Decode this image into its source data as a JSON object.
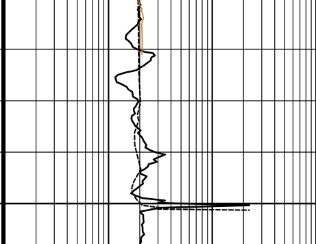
{
  "chart_data": {
    "type": "line",
    "title": "",
    "xlabel": "",
    "ylabel": "",
    "x_scale": "log",
    "xlim": [
      1,
      1000
    ],
    "y_orientation": "depth-increasing-downward",
    "grid": true,
    "legend": "none",
    "colors": {
      "grid": "#000000",
      "series_main": "#000000",
      "series_dashed": "#000000",
      "series_overlay": "#d4781e"
    },
    "series": [
      {
        "style": "solid",
        "x": [
          19.2,
          19.5,
          19.8,
          20.4,
          19.9,
          19.1,
          19.7,
          19.6,
          19.8,
          20.6,
          19.4,
          19.2,
          16.5,
          14.8,
          14.6,
          15.7,
          16.5,
          17.2,
          19.1,
          22.5,
          26.8,
          27.9,
          25.9,
          25.5,
          23.7,
          22.1,
          20.2,
          18.7,
          16.7,
          14.6,
          12.3,
          11.6,
          11.8,
          12.0,
          13.6,
          15.0,
          15.5,
          16.9,
          17.1,
          17.2,
          18.9,
          19.5,
          18.8,
          18.3,
          17.5,
          17.6,
          18.0,
          16.8,
          16.6,
          16.9,
          17.5,
          18.0,
          19.1,
          20.4,
          19.2,
          20.1,
          21.1,
          21.6,
          22.3,
          23.2,
          22.6,
          24.7,
          28.3,
          35.1,
          30.6,
          27.2,
          29.2,
          24.4,
          23.9,
          22.3,
          20.1,
          20.6,
          23.3,
          22.3,
          21.2,
          21.5,
          20.8,
          20.0,
          18.8,
          17.4,
          16.5,
          18.3,
          21.3,
          35.0,
          30.0,
          228,
          31.0,
          24.0,
          20.3,
          20.4,
          21.6,
          21.6,
          21.7,
          21.8,
          21.0,
          21.3,
          21.3,
          21.4,
          22.1,
          20.9,
          20.5,
          20.6,
          20.1
        ],
        "y": [
          0,
          2,
          5,
          8,
          12,
          16,
          20,
          24,
          28,
          32,
          36,
          40,
          50,
          58,
          64,
          68,
          72,
          78,
          82,
          86,
          88,
          92,
          95,
          100,
          104,
          108,
          112,
          116,
          118,
          120,
          124,
          128,
          132,
          136,
          140,
          144,
          148,
          152,
          156,
          160,
          164,
          168,
          172,
          176,
          180,
          184,
          188,
          192,
          196,
          200,
          204,
          208,
          212,
          216,
          220,
          224,
          228,
          232,
          236,
          240,
          244,
          248,
          252,
          256,
          260,
          264,
          268,
          272,
          276,
          280,
          284,
          288,
          292,
          296,
          300,
          304,
          306,
          308,
          312,
          316,
          320,
          324,
          328,
          332,
          336,
          340,
          344,
          348,
          350,
          352,
          356,
          360,
          364,
          368,
          372,
          376,
          380,
          384,
          388,
          392,
          396,
          400,
          404
        ]
      },
      {
        "style": "dashed",
        "x": [
          19.3,
          19.4,
          19.6,
          20.3,
          19.0,
          19.5,
          17.8,
          17.9,
          19.1,
          20.5,
          17.6,
          16.8,
          16.9,
          18.6,
          21.2,
          32.1,
          26.0,
          228
        ],
        "y": [
          0,
          40,
          120,
          170,
          190,
          200,
          220,
          240,
          260,
          280,
          300,
          310,
          320,
          330,
          340,
          344,
          346,
          348
        ]
      },
      {
        "style": "solid-orange",
        "x": [
          19.3,
          19.8,
          20.1,
          21.0,
          20.7,
          21.3,
          21.7,
          20.9,
          21.0,
          21.1,
          21.0
        ],
        "y": [
          0,
          5,
          10,
          14,
          18,
          22,
          30,
          40,
          50,
          70,
          90
        ]
      }
    ]
  }
}
